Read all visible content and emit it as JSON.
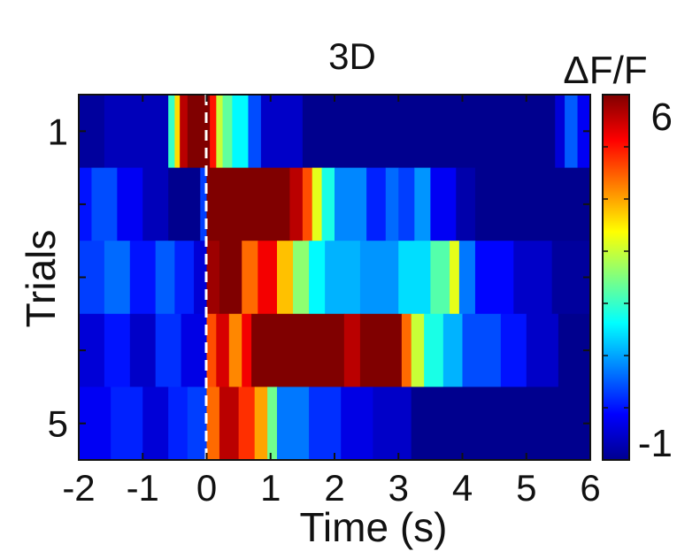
{
  "chart_data": {
    "type": "heatmap",
    "title": "3D",
    "xlabel": "Time (s)",
    "ylabel": "Trials",
    "x_range": [
      -2,
      6
    ],
    "x_ticks": [
      "-2",
      "-1",
      "0",
      "1",
      "2",
      "3",
      "4",
      "5",
      "6"
    ],
    "y_ticks": [
      "1",
      "5"
    ],
    "n_trials": 5,
    "colorbar": {
      "label": "ΔF/F",
      "min": -1,
      "max": 6,
      "tick_labels": [
        "6",
        "-1"
      ],
      "colormap": "jet"
    },
    "stimulus_onset_s": 0,
    "rows": [
      {
        "trial": 1,
        "segments": [
          [
            -2.0,
            -1.6,
            -0.8
          ],
          [
            -1.6,
            -0.6,
            -0.6
          ],
          [
            -0.6,
            -0.5,
            2.0
          ],
          [
            -0.5,
            -0.42,
            3.6
          ],
          [
            -0.42,
            -0.3,
            5.6
          ],
          [
            -0.3,
            0.05,
            6.0
          ],
          [
            0.05,
            0.15,
            5.0
          ],
          [
            0.15,
            0.25,
            3.0
          ],
          [
            0.25,
            0.4,
            2.3
          ],
          [
            0.4,
            0.65,
            1.6
          ],
          [
            0.65,
            0.85,
            0.4
          ],
          [
            0.85,
            1.5,
            -0.5
          ],
          [
            1.5,
            5.45,
            -0.9
          ],
          [
            5.45,
            5.6,
            -0.4
          ],
          [
            5.6,
            5.8,
            0.5
          ],
          [
            5.8,
            6.0,
            -0.2
          ]
        ]
      },
      {
        "trial": 2,
        "segments": [
          [
            -2.0,
            -1.8,
            0.0
          ],
          [
            -1.8,
            -1.4,
            0.4
          ],
          [
            -1.4,
            -1.0,
            -0.2
          ],
          [
            -1.0,
            -0.6,
            -0.6
          ],
          [
            -0.6,
            -0.1,
            -0.9
          ],
          [
            -0.1,
            0.0,
            0.3
          ],
          [
            0.0,
            1.3,
            6.0
          ],
          [
            1.3,
            1.5,
            5.6
          ],
          [
            1.5,
            1.65,
            4.6
          ],
          [
            1.65,
            1.8,
            3.2
          ],
          [
            1.8,
            2.0,
            1.8
          ],
          [
            2.0,
            2.5,
            0.8
          ],
          [
            2.5,
            2.8,
            0.1
          ],
          [
            2.8,
            3.0,
            0.6
          ],
          [
            3.0,
            3.25,
            0.3
          ],
          [
            3.25,
            3.5,
            0.9
          ],
          [
            3.5,
            3.9,
            -0.2
          ],
          [
            3.9,
            4.2,
            -0.7
          ],
          [
            4.2,
            6.0,
            -0.9
          ]
        ]
      },
      {
        "trial": 3,
        "segments": [
          [
            -2.0,
            -1.6,
            0.3
          ],
          [
            -1.6,
            -1.2,
            0.6
          ],
          [
            -1.2,
            -0.8,
            0.0
          ],
          [
            -0.8,
            -0.5,
            0.5
          ],
          [
            -0.5,
            -0.2,
            0.1
          ],
          [
            -0.2,
            0.0,
            -0.4
          ],
          [
            0.0,
            0.2,
            5.8
          ],
          [
            0.2,
            0.55,
            6.0
          ],
          [
            0.55,
            0.8,
            4.4
          ],
          [
            0.8,
            1.1,
            5.2
          ],
          [
            1.1,
            1.35,
            3.8
          ],
          [
            1.35,
            1.6,
            2.6
          ],
          [
            1.6,
            1.85,
            1.6
          ],
          [
            1.85,
            2.4,
            1.1
          ],
          [
            2.4,
            3.0,
            0.9
          ],
          [
            3.0,
            3.5,
            1.4
          ],
          [
            3.5,
            3.8,
            2.2
          ],
          [
            3.8,
            3.95,
            3.2
          ],
          [
            3.95,
            4.2,
            0.7
          ],
          [
            4.2,
            4.8,
            -0.1
          ],
          [
            4.8,
            5.4,
            -0.5
          ],
          [
            5.4,
            6.0,
            -0.8
          ]
        ]
      },
      {
        "trial": 4,
        "segments": [
          [
            -2.0,
            -1.6,
            -0.4
          ],
          [
            -1.6,
            -1.2,
            0.0
          ],
          [
            -1.2,
            -0.8,
            -0.5
          ],
          [
            -0.8,
            -0.4,
            0.2
          ],
          [
            -0.4,
            0.0,
            -0.3
          ],
          [
            0.0,
            0.15,
            4.6
          ],
          [
            0.15,
            0.35,
            5.4
          ],
          [
            0.35,
            0.55,
            4.2
          ],
          [
            0.55,
            0.7,
            5.2
          ],
          [
            0.7,
            2.15,
            6.0
          ],
          [
            2.15,
            2.4,
            5.6
          ],
          [
            2.4,
            3.05,
            6.0
          ],
          [
            3.05,
            3.2,
            4.4
          ],
          [
            3.2,
            3.4,
            3.0
          ],
          [
            3.4,
            3.7,
            1.8
          ],
          [
            3.7,
            4.0,
            1.1
          ],
          [
            4.0,
            4.6,
            0.4
          ],
          [
            4.6,
            5.0,
            0.0
          ],
          [
            5.0,
            5.5,
            -0.5
          ],
          [
            5.5,
            6.0,
            -0.9
          ]
        ]
      },
      {
        "trial": 5,
        "segments": [
          [
            -2.0,
            -1.5,
            -0.2
          ],
          [
            -1.5,
            -1.0,
            0.1
          ],
          [
            -1.0,
            -0.6,
            -0.4
          ],
          [
            -0.6,
            -0.3,
            0.1
          ],
          [
            -0.3,
            0.0,
            0.3
          ],
          [
            0.0,
            0.2,
            4.4
          ],
          [
            0.2,
            0.5,
            5.6
          ],
          [
            0.5,
            0.75,
            4.8
          ],
          [
            0.75,
            0.95,
            4.0
          ],
          [
            0.95,
            1.1,
            2.4
          ],
          [
            1.1,
            1.6,
            0.7
          ],
          [
            1.6,
            2.1,
            0.2
          ],
          [
            2.1,
            2.6,
            -0.3
          ],
          [
            2.6,
            3.2,
            -0.5
          ],
          [
            3.2,
            6.0,
            -0.9
          ]
        ]
      }
    ]
  }
}
